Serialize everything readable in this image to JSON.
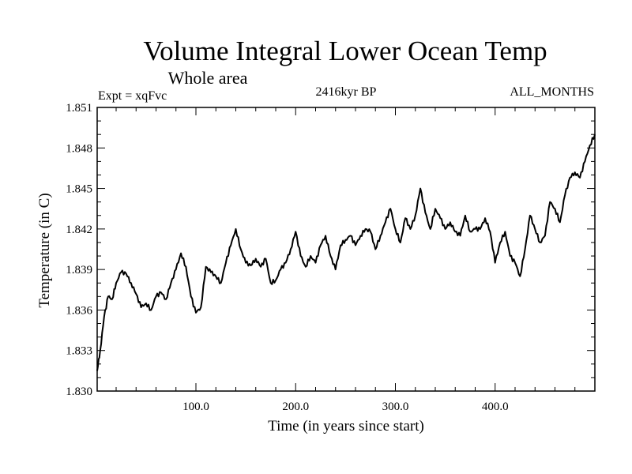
{
  "chart_data": {
    "type": "line",
    "title": "Volume Integral Lower Ocean Temp",
    "subtitle": "Whole area",
    "left_label": "Expt = xqFvc",
    "center_label": "2416kyr BP",
    "right_label": "ALL_MONTHS",
    "xlabel": "Time (in years since start)",
    "ylabel": "Temperature (in C)",
    "xlim": [
      1,
      500
    ],
    "ylim": [
      1.83,
      1.851
    ],
    "x_ticks": [
      100,
      200,
      300,
      400
    ],
    "x_tick_labels": [
      "100.0",
      "200.0",
      "300.0",
      "400.0"
    ],
    "y_ticks": [
      1.83,
      1.833,
      1.836,
      1.839,
      1.842,
      1.845,
      1.848,
      1.851
    ],
    "y_tick_labels": [
      "1.830",
      "1.833",
      "1.836",
      "1.839",
      "1.842",
      "1.845",
      "1.848",
      "1.851"
    ],
    "grid": false,
    "series": [
      {
        "name": "Volume Integral Lower Ocean Temp",
        "x": [
          1,
          4,
          8,
          12,
          16,
          20,
          25,
          30,
          35,
          40,
          45,
          50,
          55,
          60,
          65,
          70,
          75,
          80,
          85,
          90,
          95,
          100,
          105,
          110,
          115,
          120,
          125,
          130,
          135,
          140,
          145,
          150,
          155,
          160,
          165,
          170,
          175,
          180,
          185,
          190,
          195,
          200,
          205,
          210,
          215,
          220,
          225,
          230,
          235,
          240,
          245,
          250,
          255,
          260,
          265,
          270,
          275,
          280,
          285,
          290,
          295,
          300,
          305,
          310,
          315,
          320,
          325,
          330,
          335,
          340,
          345,
          350,
          355,
          360,
          365,
          370,
          375,
          380,
          385,
          390,
          395,
          400,
          405,
          410,
          415,
          420,
          425,
          430,
          435,
          440,
          445,
          450,
          455,
          460,
          465,
          470,
          475,
          480,
          485,
          490,
          495,
          500
        ],
        "y": [
          1.8315,
          1.833,
          1.8355,
          1.837,
          1.8368,
          1.838,
          1.8388,
          1.8387,
          1.838,
          1.8372,
          1.8362,
          1.8365,
          1.836,
          1.837,
          1.8373,
          1.8368,
          1.838,
          1.839,
          1.8402,
          1.8392,
          1.837,
          1.8358,
          1.8362,
          1.8392,
          1.8388,
          1.8385,
          1.838,
          1.8395,
          1.8408,
          1.842,
          1.8405,
          1.8395,
          1.8393,
          1.8398,
          1.8392,
          1.8398,
          1.838,
          1.8382,
          1.839,
          1.8395,
          1.8405,
          1.8418,
          1.84,
          1.8392,
          1.84,
          1.8395,
          1.8408,
          1.8415,
          1.84,
          1.839,
          1.8408,
          1.8412,
          1.8415,
          1.8408,
          1.8415,
          1.842,
          1.8418,
          1.8405,
          1.8415,
          1.8425,
          1.8435,
          1.842,
          1.841,
          1.8428,
          1.842,
          1.843,
          1.845,
          1.8432,
          1.842,
          1.8435,
          1.8428,
          1.842,
          1.8425,
          1.8418,
          1.8415,
          1.843,
          1.8418,
          1.842,
          1.842,
          1.8428,
          1.8418,
          1.8395,
          1.841,
          1.8418,
          1.84,
          1.8395,
          1.8385,
          1.8405,
          1.843,
          1.842,
          1.841,
          1.8415,
          1.844,
          1.8435,
          1.8425,
          1.8445,
          1.8458,
          1.8462,
          1.8458,
          1.847,
          1.8482,
          1.849
        ]
      }
    ]
  }
}
